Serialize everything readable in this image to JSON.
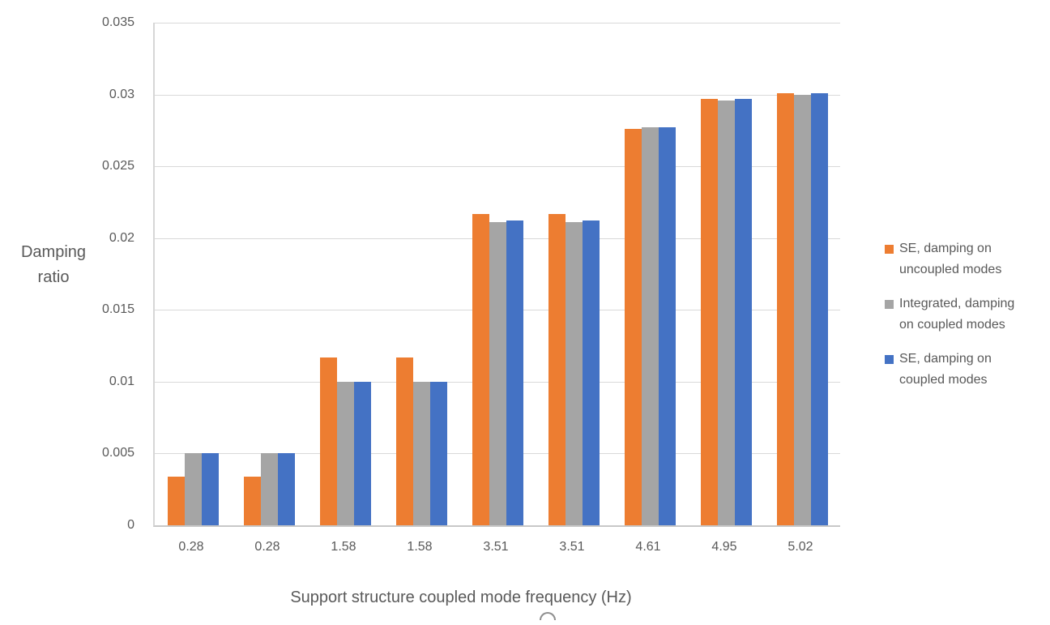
{
  "chart_data": {
    "type": "bar",
    "title": "",
    "xlabel": "Support structure coupled mode frequency (Hz)",
    "ylabel": "Damping ratio",
    "categories": [
      "0.28",
      "0.28",
      "1.58",
      "1.58",
      "3.51",
      "3.51",
      "4.61",
      "4.95",
      "5.02"
    ],
    "series": [
      {
        "name": "SE, damping on uncoupled modes",
        "color": "#ED7D31",
        "values": [
          0.0034,
          0.0034,
          0.0117,
          0.0117,
          0.0217,
          0.0217,
          0.0276,
          0.0297,
          0.0301
        ]
      },
      {
        "name": "Integrated, damping on coupled modes",
        "color": "#A5A5A5",
        "values": [
          0.005,
          0.005,
          0.01,
          0.01,
          0.0211,
          0.0211,
          0.0277,
          0.0296,
          0.03
        ]
      },
      {
        "name": "SE, damping on coupled modes",
        "color": "#4472C4",
        "values": [
          0.005,
          0.005,
          0.01,
          0.01,
          0.0212,
          0.0212,
          0.0277,
          0.0297,
          0.0301
        ]
      }
    ],
    "ylim": [
      0,
      0.035
    ],
    "ytick_step": 0.005,
    "yticks": [
      "0.035",
      "0.03",
      "0.025",
      "0.02",
      "0.015",
      "0.01",
      "0.005",
      "0"
    ],
    "grid": true,
    "legend_position": "right"
  },
  "colors": {
    "series_orange": "#ED7D31",
    "series_gray": "#A5A5A5",
    "series_blue": "#4472C4",
    "gridline": "#D9D9D9",
    "axis_line": "#C8C8C8",
    "text": "#595959"
  }
}
